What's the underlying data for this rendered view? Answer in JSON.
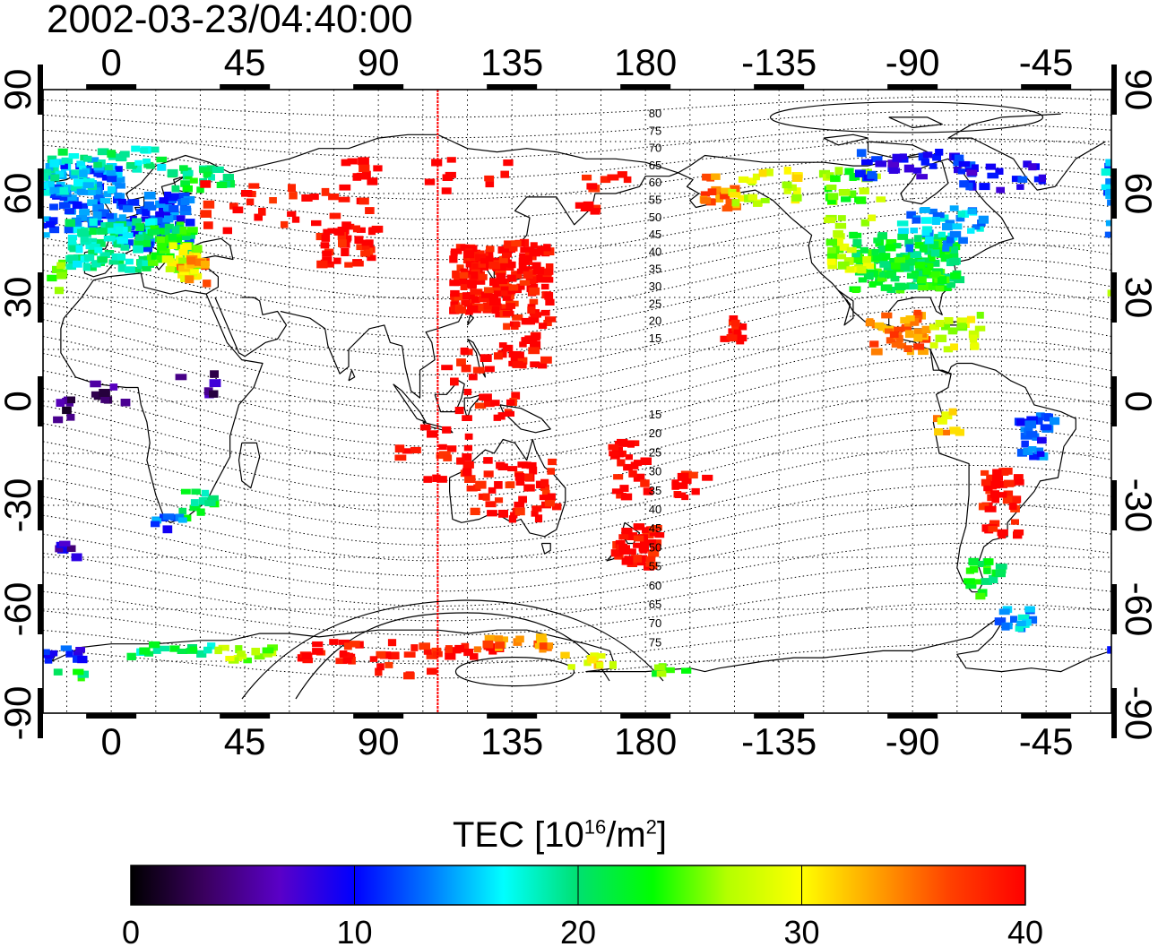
{
  "timestamp": "2002-03-23/04:40:00",
  "map": {
    "x_axis_labels": [
      {
        "lon": 0,
        "label": "0"
      },
      {
        "lon": 45,
        "label": "45"
      },
      {
        "lon": 90,
        "label": "90"
      },
      {
        "lon": 135,
        "label": "135"
      },
      {
        "lon": 180,
        "label": "180"
      },
      {
        "lon": 225,
        "label": "-135"
      },
      {
        "lon": 270,
        "label": "-90"
      },
      {
        "lon": 315,
        "label": "-45"
      }
    ],
    "y_axis_labels": [
      {
        "lat": 90,
        "label": "90"
      },
      {
        "lat": 60,
        "label": "60"
      },
      {
        "lat": 30,
        "label": "30"
      },
      {
        "lat": 0,
        "label": "0"
      },
      {
        "lat": -30,
        "label": "-30"
      },
      {
        "lat": -60,
        "label": "-60"
      },
      {
        "lat": -90,
        "label": "-90"
      }
    ],
    "lon_range": [
      -23,
      337
    ],
    "lat_range": [
      -90,
      90
    ],
    "grid": "dotted, 15-degree",
    "marker_longitude": 110,
    "marker_color": "#ff0000",
    "contour_labels_upper": [
      "80",
      "75",
      "70",
      "65",
      "60",
      "55",
      "50",
      "45",
      "40",
      "35",
      "30",
      "25",
      "20",
      "15"
    ],
    "contour_labels_lower": [
      "15",
      "20",
      "25",
      "30",
      "35",
      "40",
      "45",
      "50",
      "55",
      "60",
      "65",
      "70",
      "75"
    ]
  },
  "colorbar": {
    "title_main": "TEC  [10",
    "title_exp1": "16",
    "title_mid": "/m",
    "title_exp2": "2",
    "title_end": "]",
    "ticks": [
      "0",
      "10",
      "20",
      "30",
      "40"
    ],
    "range": [
      0,
      40
    ],
    "colors": [
      "#000000",
      "#3b0060",
      "#5a00c8",
      "#0000ff",
      "#0078ff",
      "#00ffff",
      "#00e070",
      "#00ff00",
      "#b4ff00",
      "#ffff00",
      "#ffa000",
      "#ff4000",
      "#ff0000"
    ]
  }
}
